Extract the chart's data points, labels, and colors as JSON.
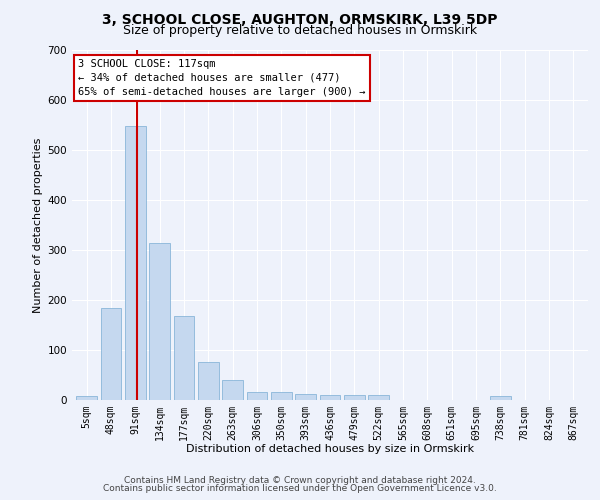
{
  "title": "3, SCHOOL CLOSE, AUGHTON, ORMSKIRK, L39 5DP",
  "subtitle": "Size of property relative to detached houses in Ormskirk",
  "xlabel": "Distribution of detached houses by size in Ormskirk",
  "ylabel": "Number of detached properties",
  "footer_line1": "Contains HM Land Registry data © Crown copyright and database right 2024.",
  "footer_line2": "Contains public sector information licensed under the Open Government Licence v3.0.",
  "annotation_title": "3 SCHOOL CLOSE: 117sqm",
  "annotation_line2": "← 34% of detached houses are smaller (477)",
  "annotation_line3": "65% of semi-detached houses are larger (900) →",
  "bar_color": "#c5d8ef",
  "bar_edge_color": "#7aadd4",
  "vline_color": "#cc0000",
  "categories": [
    "5sqm",
    "48sqm",
    "91sqm",
    "134sqm",
    "177sqm",
    "220sqm",
    "263sqm",
    "306sqm",
    "350sqm",
    "393sqm",
    "436sqm",
    "479sqm",
    "522sqm",
    "565sqm",
    "608sqm",
    "651sqm",
    "695sqm",
    "738sqm",
    "781sqm",
    "824sqm",
    "867sqm"
  ],
  "values": [
    8,
    185,
    548,
    315,
    168,
    77,
    40,
    17,
    17,
    13,
    11,
    11,
    11,
    0,
    0,
    0,
    0,
    8,
    0,
    0,
    0
  ],
  "vline_pos": 2.08,
  "ylim": [
    0,
    700
  ],
  "yticks": [
    0,
    100,
    200,
    300,
    400,
    500,
    600,
    700
  ],
  "background_color": "#eef2fb",
  "grid_color": "#ffffff",
  "title_fontsize": 10,
  "subtitle_fontsize": 9,
  "axis_label_fontsize": 8,
  "tick_fontsize": 7,
  "footer_fontsize": 6.5,
  "annotation_fontsize": 7.5
}
